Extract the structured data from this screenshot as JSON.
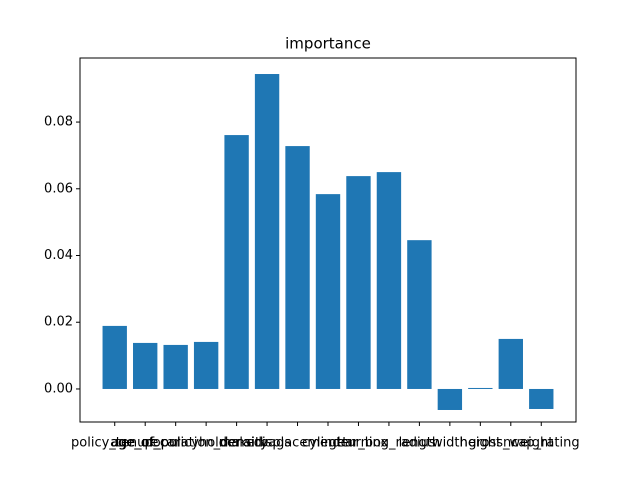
{
  "chart_data": {
    "type": "bar",
    "title": "importance",
    "categories": [
      "policy_tenure",
      "age_of_car",
      "age_of_policyholder",
      "population_density",
      "make",
      "airbags",
      "displacement",
      "cylinder",
      "gear_box",
      "turning_radius",
      "length",
      "width",
      "height",
      "gross_weight",
      "ncap_rating"
    ],
    "values": [
      0.0189,
      0.0138,
      0.0132,
      0.0141,
      0.0761,
      0.0944,
      0.0728,
      0.0584,
      0.0638,
      0.065,
      0.0446,
      -0.0063,
      0.0003,
      0.015,
      -0.006
    ],
    "color": "#1f77b4",
    "ylim": [
      -0.0099,
      0.0992
    ],
    "yticks": [
      {
        "value": 0,
        "label": "0.00"
      },
      {
        "value": 0.02,
        "label": "0.02"
      },
      {
        "value": 0.04,
        "label": "0.04"
      },
      {
        "value": 0.06,
        "label": "0.06"
      },
      {
        "value": 0.08,
        "label": "0.08"
      }
    ],
    "grid": false
  }
}
